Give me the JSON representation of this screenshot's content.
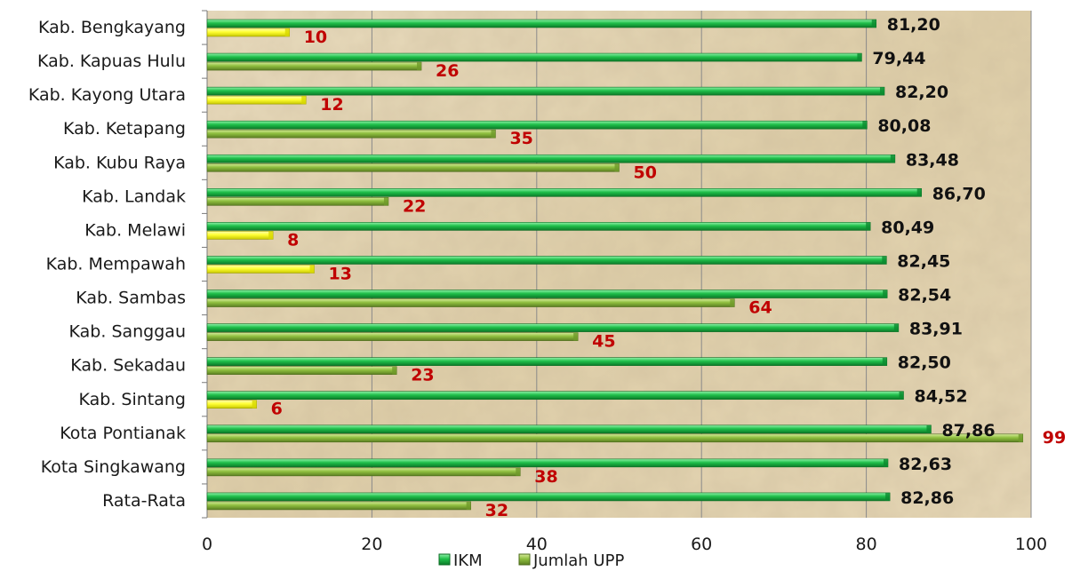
{
  "chart_data": {
    "type": "bar",
    "orientation": "horizontal",
    "categories": [
      "Kab. Bengkayang",
      "Kab. Kapuas Hulu",
      "Kab. Kayong Utara",
      "Kab. Ketapang",
      "Kab. Kubu Raya",
      "Kab. Landak",
      "Kab. Melawi",
      "Kab. Mempawah",
      "Kab. Sambas",
      "Kab. Sanggau",
      "Kab. Sekadau",
      "Kab. Sintang",
      "Kota Pontianak",
      "Kota Singkawang",
      "Rata-Rata"
    ],
    "series": [
      {
        "name": "IKM",
        "values": [
          81.2,
          79.44,
          82.2,
          80.08,
          83.48,
          86.7,
          80.49,
          82.45,
          82.54,
          83.91,
          82.5,
          84.52,
          87.86,
          82.63,
          82.86
        ],
        "labels": [
          "81,20",
          "79,44",
          "82,20",
          "80,08",
          "83,48",
          "86,70",
          "80,49",
          "82,45",
          "82,54",
          "83,91",
          "82,50",
          "84,52",
          "87,86",
          "82,63",
          "82,86"
        ],
        "color": "#1fbf4a",
        "label_color": "#111111"
      },
      {
        "name": "Jumlah UPP",
        "values": [
          10,
          26,
          12,
          35,
          50,
          22,
          8,
          13,
          64,
          45,
          23,
          6,
          99,
          38,
          32
        ],
        "labels": [
          "10",
          "26",
          "12",
          "35",
          "50",
          "22",
          "8",
          "13",
          "64",
          "45",
          "23",
          "6",
          "99",
          "38",
          "32"
        ],
        "color": "#8fbf3f",
        "highlight_color": "#ffff33",
        "highlighted": [
          0,
          2,
          6,
          7,
          11
        ],
        "label_color": "#c00000"
      }
    ],
    "title": "",
    "xlabel": "",
    "ylabel": "",
    "xlim": [
      0,
      100
    ],
    "xticks": [
      0,
      20,
      40,
      60,
      80,
      100
    ],
    "grid": "vertical",
    "legend": "bottom",
    "background": "parchment-texture"
  }
}
